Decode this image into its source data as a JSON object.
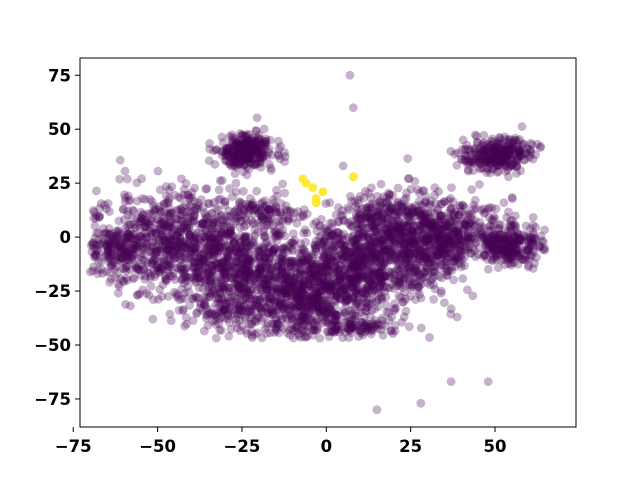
{
  "chart_data": {
    "type": "scatter",
    "title": "",
    "xlabel": "",
    "ylabel": "",
    "xlim": [
      -73,
      74
    ],
    "ylim": [
      -88,
      83
    ],
    "xticks": [
      -75,
      -50,
      -25,
      0,
      25,
      50
    ],
    "xtick_labels": [
      "−75",
      "−50",
      "−25",
      "0",
      "25",
      "50"
    ],
    "yticks": [
      -75,
      -50,
      -25,
      0,
      25,
      50,
      75
    ],
    "ytick_labels": [
      "−75",
      "−50",
      "−25",
      "0",
      "25",
      "50",
      "75"
    ],
    "grid": false,
    "colors": {
      "main": "#440154",
      "highlight": "#fde725"
    },
    "marker_alpha": 0.3,
    "clusters": [
      {
        "name": "left-lobe",
        "cx": -45,
        "cy": -2,
        "sx": 12,
        "sy": 12,
        "n": 700
      },
      {
        "name": "far-left",
        "cx": -62,
        "cy": -5,
        "sx": 5,
        "sy": 6,
        "n": 150
      },
      {
        "name": "center-left",
        "cx": -25,
        "cy": -15,
        "sx": 10,
        "sy": 12,
        "n": 600
      },
      {
        "name": "center-bottom",
        "cx": -8,
        "cy": -30,
        "sx": 8,
        "sy": 9,
        "n": 450
      },
      {
        "name": "center",
        "cx": 5,
        "cy": -15,
        "sx": 10,
        "sy": 12,
        "n": 700
      },
      {
        "name": "center-right",
        "cx": 22,
        "cy": -5,
        "sx": 9,
        "sy": 11,
        "n": 550
      },
      {
        "name": "right-mid",
        "cx": 35,
        "cy": 2,
        "sx": 8,
        "sy": 8,
        "n": 400
      },
      {
        "name": "top-left-island",
        "cx": -24,
        "cy": 40,
        "sx": 4,
        "sy": 4,
        "n": 300
      },
      {
        "name": "top-right-island",
        "cx": 51,
        "cy": 38,
        "sx": 5,
        "sy": 4,
        "n": 300
      },
      {
        "name": "right-island",
        "cx": 54,
        "cy": -3,
        "sx": 5,
        "sy": 5,
        "n": 260
      },
      {
        "name": "upper-left-patch",
        "cx": -18,
        "cy": 12,
        "sx": 5,
        "sy": 3,
        "n": 80
      },
      {
        "name": "upper-right-patch",
        "cx": 15,
        "cy": 12,
        "sx": 5,
        "sy": 4,
        "n": 90
      },
      {
        "name": "lower-left",
        "cx": -28,
        "cy": -33,
        "sx": 5,
        "sy": 5,
        "n": 80
      },
      {
        "name": "lower-center",
        "cx": 10,
        "cy": -40,
        "sx": 6,
        "sy": 3,
        "n": 80
      }
    ],
    "outliers": [
      [
        7,
        75
      ],
      [
        8,
        60
      ],
      [
        5,
        33
      ],
      [
        -44,
        -27
      ],
      [
        -52,
        -18
      ],
      [
        37,
        -67
      ],
      [
        48,
        -67
      ],
      [
        28,
        -77
      ],
      [
        15,
        -80
      ]
    ],
    "highlight_points": [
      [
        -6,
        25
      ],
      [
        -4,
        23
      ],
      [
        -3,
        18
      ],
      [
        -3,
        16
      ],
      [
        -1,
        21
      ],
      [
        8,
        28
      ],
      [
        -7,
        27
      ]
    ]
  }
}
